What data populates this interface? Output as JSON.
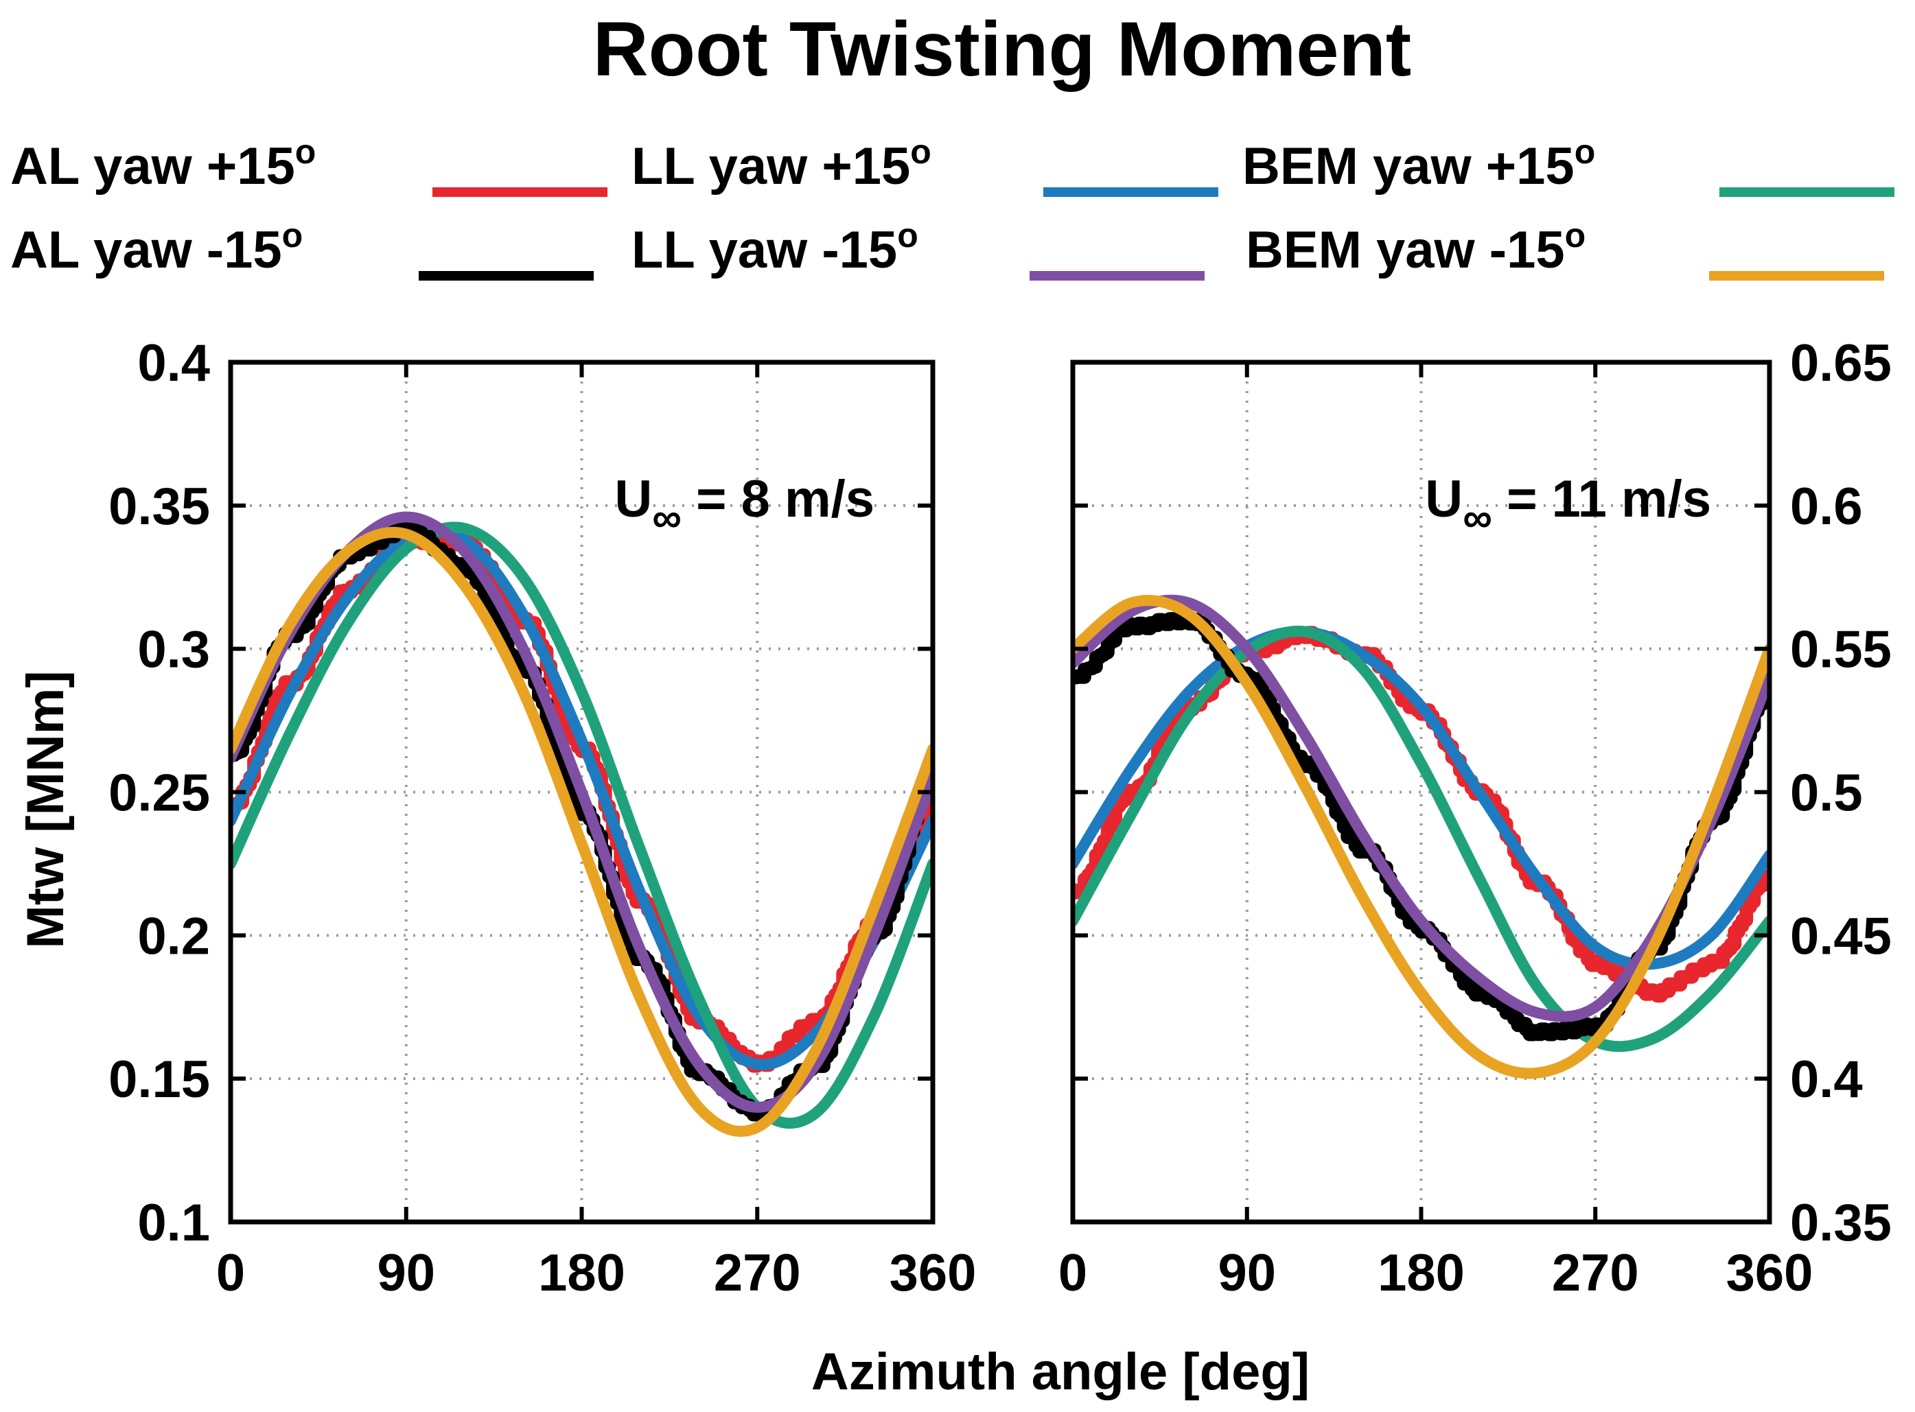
{
  "figure": {
    "title": "Root Twisting Moment",
    "xlabel": "Azimuth angle [deg]",
    "ylabel": "Mtw [MNm]"
  },
  "legend": [
    {
      "label": "AL yaw +15",
      "sup": "o",
      "color": "#e8262d"
    },
    {
      "label": "LL yaw +15",
      "sup": "o",
      "color": "#1f7bc0"
    },
    {
      "label": "BEM yaw +15",
      "sup": "o",
      "color": "#1fa27c"
    },
    {
      "label": "AL yaw -15",
      "sup": "o",
      "color": "#000000"
    },
    {
      "label": "LL yaw -15",
      "sup": "o",
      "color": "#7e4fa3"
    },
    {
      "label": "BEM yaw -15",
      "sup": "o",
      "color": "#e9a322"
    }
  ],
  "chart_data": [
    {
      "type": "line",
      "annotation": {
        "prefix": "U",
        "sub": "∞",
        "suffix": " = 8 m/s"
      },
      "xlim": [
        0,
        360
      ],
      "ylim": [
        0.1,
        0.4
      ],
      "xticks": [
        0,
        90,
        180,
        270,
        360
      ],
      "xtick_labels": [
        "0",
        "90",
        "180",
        "270",
        "360"
      ],
      "yticks": [
        0.1,
        0.15,
        0.2,
        0.25,
        0.3,
        0.35,
        0.4
      ],
      "ytick_labels": [
        "0.1",
        "0.15",
        "0.2",
        "0.25",
        "0.3",
        "0.35",
        "0.4"
      ],
      "ytick_side": "left",
      "grid": true,
      "x": [
        0,
        30,
        60,
        90,
        120,
        150,
        180,
        210,
        240,
        270,
        300,
        330,
        360
      ],
      "series": [
        {
          "name": "AL yaw +15",
          "color": "#e8262d",
          "noisy": true,
          "values": [
            0.245,
            0.288,
            0.321,
            0.338,
            0.337,
            0.31,
            0.265,
            0.212,
            0.17,
            0.155,
            0.17,
            0.205,
            0.245
          ]
        },
        {
          "name": "LL yaw +15",
          "color": "#1f7bc0",
          "noisy": false,
          "values": [
            0.24,
            0.284,
            0.318,
            0.338,
            0.338,
            0.312,
            0.268,
            0.215,
            0.172,
            0.155,
            0.166,
            0.198,
            0.24
          ]
        },
        {
          "name": "BEM yaw +15",
          "color": "#1fa27c",
          "noisy": false,
          "values": [
            0.225,
            0.27,
            0.309,
            0.335,
            0.342,
            0.325,
            0.285,
            0.23,
            0.178,
            0.14,
            0.138,
            0.172,
            0.225
          ]
        },
        {
          "name": "AL yaw -15",
          "color": "#000000",
          "noisy": true,
          "values": [
            0.263,
            0.305,
            0.333,
            0.342,
            0.328,
            0.293,
            0.243,
            0.192,
            0.152,
            0.138,
            0.155,
            0.2,
            0.255
          ]
        },
        {
          "name": "LL yaw -15",
          "color": "#7e4fa3",
          "noisy": false,
          "values": [
            0.262,
            0.305,
            0.334,
            0.346,
            0.334,
            0.3,
            0.25,
            0.195,
            0.155,
            0.14,
            0.155,
            0.2,
            0.255
          ]
        },
        {
          "name": "BEM yaw -15",
          "color": "#e9a322",
          "noisy": false,
          "values": [
            0.265,
            0.308,
            0.334,
            0.34,
            0.322,
            0.285,
            0.232,
            0.178,
            0.14,
            0.133,
            0.16,
            0.21,
            0.265
          ]
        }
      ]
    },
    {
      "type": "line",
      "annotation": {
        "prefix": "U",
        "sub": "∞",
        "suffix": " = 11 m/s"
      },
      "xlim": [
        0,
        360
      ],
      "ylim": [
        0.35,
        0.65
      ],
      "xticks": [
        0,
        90,
        180,
        270,
        360
      ],
      "xtick_labels": [
        "0",
        "90",
        "180",
        "270",
        "360"
      ],
      "yticks": [
        0.35,
        0.4,
        0.45,
        0.5,
        0.55,
        0.6,
        0.65
      ],
      "ytick_labels": [
        "0.35",
        "0.4",
        "0.45",
        "0.5",
        "0.55",
        "0.6",
        "0.65"
      ],
      "ytick_side": "right",
      "grid": true,
      "x": [
        0,
        30,
        60,
        90,
        120,
        150,
        180,
        210,
        240,
        270,
        300,
        330,
        360
      ],
      "series": [
        {
          "name": "AL yaw +15",
          "color": "#e8262d",
          "noisy": true,
          "values": [
            0.465,
            0.5,
            0.53,
            0.549,
            0.555,
            0.548,
            0.528,
            0.5,
            0.468,
            0.44,
            0.43,
            0.44,
            0.47
          ]
        },
        {
          "name": "LL yaw +15",
          "color": "#1f7bc0",
          "noisy": false,
          "values": [
            0.475,
            0.508,
            0.535,
            0.551,
            0.556,
            0.548,
            0.53,
            0.5,
            0.47,
            0.446,
            0.44,
            0.45,
            0.478
          ]
        },
        {
          "name": "BEM yaw +15",
          "color": "#1fa27c",
          "noisy": false,
          "values": [
            0.455,
            0.492,
            0.527,
            0.549,
            0.556,
            0.543,
            0.51,
            0.47,
            0.432,
            0.413,
            0.414,
            0.43,
            0.455
          ]
        },
        {
          "name": "AL yaw -15",
          "color": "#000000",
          "noisy": true,
          "values": [
            0.54,
            0.558,
            0.56,
            0.54,
            0.51,
            0.48,
            0.452,
            0.43,
            0.416,
            0.418,
            0.446,
            0.49,
            0.535
          ]
        },
        {
          "name": "LL yaw -15",
          "color": "#7e4fa3",
          "noisy": false,
          "values": [
            0.545,
            0.563,
            0.566,
            0.55,
            0.52,
            0.485,
            0.455,
            0.435,
            0.423,
            0.425,
            0.45,
            0.49,
            0.54
          ]
        },
        {
          "name": "BEM yaw -15",
          "color": "#e9a322",
          "noisy": false,
          "values": [
            0.55,
            0.566,
            0.562,
            0.538,
            0.502,
            0.463,
            0.43,
            0.408,
            0.402,
            0.413,
            0.446,
            0.495,
            0.55
          ]
        }
      ]
    }
  ]
}
